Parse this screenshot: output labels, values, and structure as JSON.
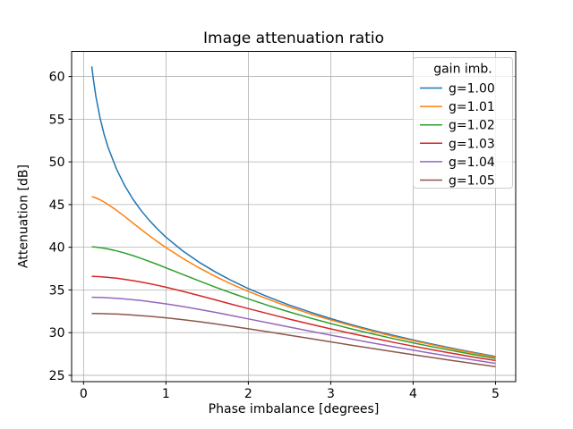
{
  "figure": {
    "background": "#ffffff",
    "text_color": "#000000"
  },
  "chart_data": {
    "type": "line",
    "title": "Image attenuation ratio",
    "xlabel": "Phase imbalance [degrees]",
    "ylabel": "Attenuation [dB]",
    "xlim": [
      -0.145,
      5.245
    ],
    "ylim": [
      24.26,
      62.94
    ],
    "xticks": [
      0,
      1,
      2,
      3,
      4,
      5
    ],
    "yticks": [
      25,
      30,
      35,
      40,
      45,
      50,
      55,
      60
    ],
    "grid": true,
    "grid_color": "#b0b0b0",
    "spine_color": "#000000",
    "legend": {
      "title": "gain imb.",
      "position": "upper right",
      "border_color": "#cccccc",
      "background": "rgba(255,255,255,0.8)"
    },
    "x": [
      0.1,
      0.12,
      0.15,
      0.2,
      0.25,
      0.3,
      0.4,
      0.5,
      0.6,
      0.7,
      0.8,
      0.9,
      1.0,
      1.2,
      1.4,
      1.6,
      1.8,
      2.0,
      2.25,
      2.5,
      2.75,
      3.0,
      3.25,
      3.5,
      3.75,
      4.0,
      4.25,
      4.5,
      4.75,
      5.0
    ],
    "series": [
      {
        "name": "g=1.00",
        "color": "#1f77b4",
        "values": [
          61.18,
          59.6,
          57.66,
          55.16,
          53.22,
          51.64,
          49.14,
          47.2,
          45.62,
          44.28,
          43.12,
          42.1,
          41.18,
          39.6,
          38.26,
          37.1,
          36.08,
          35.16,
          34.14,
          33.22,
          32.4,
          31.64,
          30.94,
          30.3,
          29.7,
          29.14,
          28.61,
          28.12,
          27.65,
          27.2
        ]
      },
      {
        "name": "g=1.01",
        "color": "#ff7f0e",
        "values": [
          45.93,
          45.88,
          45.77,
          45.56,
          45.3,
          45.0,
          44.33,
          43.59,
          42.83,
          42.07,
          41.34,
          40.63,
          39.96,
          38.72,
          37.6,
          36.58,
          35.66,
          34.82,
          33.87,
          33.0,
          32.21,
          31.48,
          30.81,
          30.18,
          29.59,
          29.05,
          28.53,
          28.04,
          27.58,
          27.14
        ]
      },
      {
        "name": "g=1.02",
        "color": "#2ca02c",
        "values": [
          40.05,
          40.04,
          40.01,
          39.95,
          39.88,
          39.79,
          39.58,
          39.31,
          39.02,
          38.69,
          38.33,
          37.97,
          37.59,
          36.83,
          36.07,
          35.33,
          34.62,
          33.95,
          33.15,
          32.41,
          31.71,
          31.06,
          30.44,
          29.87,
          29.32,
          28.8,
          28.31,
          27.85,
          27.4,
          26.98
        ]
      },
      {
        "name": "g=1.03",
        "color": "#d62728",
        "values": [
          36.59,
          36.58,
          36.57,
          36.55,
          36.51,
          36.47,
          36.37,
          36.24,
          36.09,
          35.92,
          35.73,
          35.53,
          35.31,
          34.84,
          34.35,
          33.84,
          33.32,
          32.81,
          32.19,
          31.58,
          31.0,
          30.44,
          29.9,
          29.39,
          28.89,
          28.42,
          27.97,
          27.54,
          27.12,
          26.73
        ]
      },
      {
        "name": "g=1.04",
        "color": "#9467bd",
        "values": [
          34.14,
          34.14,
          34.13,
          34.12,
          34.1,
          34.08,
          34.02,
          33.94,
          33.85,
          33.75,
          33.63,
          33.5,
          33.37,
          33.06,
          32.73,
          32.37,
          32.0,
          31.61,
          31.13,
          30.65,
          30.17,
          29.7,
          29.25,
          28.8,
          28.37,
          27.95,
          27.54,
          27.15,
          26.77,
          26.4
        ]
      },
      {
        "name": "g=1.05",
        "color": "#8c564b",
        "values": [
          32.25,
          32.25,
          32.24,
          32.23,
          32.22,
          32.21,
          32.17,
          32.12,
          32.06,
          31.99,
          31.91,
          31.82,
          31.73,
          31.52,
          31.28,
          31.02,
          30.74,
          30.45,
          30.08,
          29.69,
          29.31,
          28.92,
          28.53,
          28.16,
          27.78,
          27.41,
          27.05,
          26.7,
          26.35,
          26.02
        ]
      }
    ]
  }
}
